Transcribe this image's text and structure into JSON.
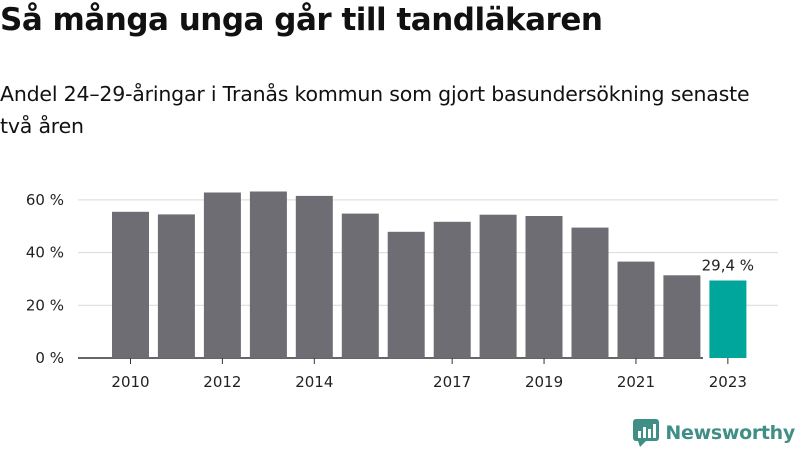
{
  "header": {
    "title": "Så många unga går till tandläkaren",
    "subtitle": "Andel 24–29-åringar i Tranås kommun som gjort basundersökning senaste två åren"
  },
  "brand": {
    "name": "Newsworthy",
    "icon": "newsworthy-logo-icon",
    "color": "#3f8f87"
  },
  "chart_data": {
    "type": "bar",
    "title": "Så många unga går till tandläkaren",
    "subtitle": "Andel 24–29-åringar i Tranås kommun som gjort basundersökning senaste två åren",
    "xlabel": "",
    "ylabel": "",
    "categories": [
      "2010",
      "2011",
      "2012",
      "2013",
      "2014",
      "2015",
      "2016",
      "2017",
      "2018",
      "2019",
      "2020",
      "2021",
      "2022",
      "2023"
    ],
    "values": [
      55.5,
      54.5,
      62.8,
      63.2,
      61.5,
      54.8,
      47.9,
      51.7,
      54.4,
      53.9,
      49.5,
      36.6,
      31.4,
      29.4
    ],
    "x_tick_labels": [
      "2010",
      "2012",
      "2014",
      "2017",
      "2019",
      "2021",
      "2023"
    ],
    "y_ticks": [
      "0 %",
      "20 %",
      "40 %",
      "60 %"
    ],
    "ylim": [
      0,
      65
    ],
    "grid": true,
    "bar_color": "#6e6d73",
    "highlight_color": "#00a69c",
    "highlight_index": 13,
    "highlight_label": "29,4 %"
  }
}
